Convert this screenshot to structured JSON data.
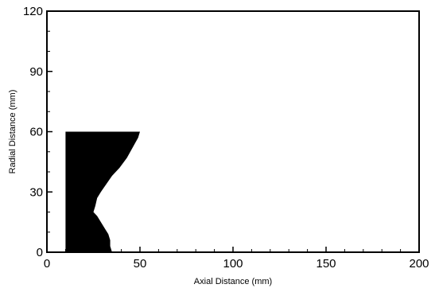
{
  "chart_data": {
    "type": "area",
    "title": "",
    "xlabel": "Axial Distance (mm)",
    "ylabel": "Radial Distance (mm)",
    "xlim": [
      0,
      200
    ],
    "ylim": [
      0,
      120
    ],
    "x_ticks": [
      0,
      50,
      100,
      150,
      200
    ],
    "y_ticks": [
      0,
      30,
      60,
      90,
      120
    ],
    "x_tick_labels": [
      "0",
      "50",
      "100",
      "150",
      "200"
    ],
    "y_tick_labels": [
      "0",
      "30",
      "60",
      "90",
      "120"
    ],
    "grid": false,
    "legend": "none",
    "fill_color": "#000000",
    "series": [
      {
        "points": [
          [
            10,
            0
          ],
          [
            10,
            60
          ],
          [
            50,
            60
          ],
          [
            49,
            57
          ],
          [
            46,
            52
          ],
          [
            43,
            47
          ],
          [
            39,
            42
          ],
          [
            35,
            38
          ],
          [
            32,
            34
          ],
          [
            29,
            30
          ],
          [
            27,
            27
          ],
          [
            26,
            23
          ],
          [
            25,
            20
          ],
          [
            27,
            18
          ],
          [
            29,
            15
          ],
          [
            31,
            12
          ],
          [
            33,
            9
          ],
          [
            34,
            6
          ],
          [
            34,
            3
          ],
          [
            35,
            0
          ]
        ]
      }
    ]
  }
}
